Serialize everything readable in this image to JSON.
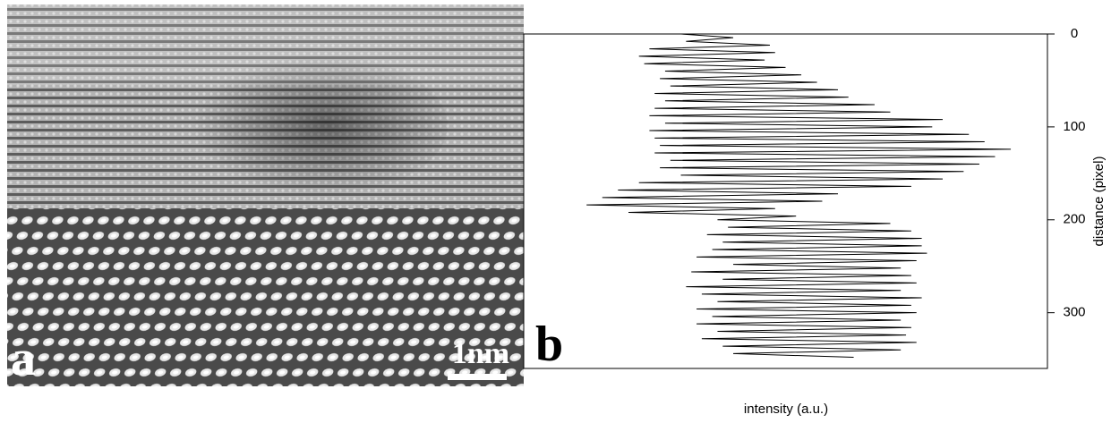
{
  "image_panel": {
    "label": "a",
    "scale_bar": "1nm"
  },
  "chart_data": {
    "type": "line",
    "panel_label": "b",
    "orientation": "vertical",
    "y_axis_side": "right",
    "xlabel": "distance (pixel)",
    "ylabel": "intensity (a.u.)",
    "x": [
      0,
      4,
      8,
      12,
      16,
      20,
      24,
      28,
      32,
      36,
      40,
      44,
      48,
      52,
      56,
      60,
      64,
      68,
      72,
      76,
      80,
      84,
      88,
      92,
      96,
      100,
      104,
      108,
      112,
      116,
      120,
      124,
      128,
      132,
      136,
      140,
      144,
      148,
      152,
      156,
      160,
      164,
      168,
      172,
      176,
      180,
      184,
      188,
      192,
      196,
      200,
      204,
      208,
      212,
      216,
      220,
      224,
      228,
      232,
      236,
      240,
      244,
      248,
      252,
      256,
      260,
      264,
      268,
      272,
      276,
      280,
      284,
      288,
      292,
      296,
      300,
      304,
      308,
      312,
      316,
      320,
      324,
      328,
      332,
      336,
      340,
      344,
      348
    ],
    "xlim": [
      0,
      360
    ],
    "xticks": [
      0,
      100,
      200,
      300
    ],
    "ylim": [
      0,
      100
    ],
    "series": [
      {
        "color": "#000000",
        "values": [
          30,
          40,
          31,
          47,
          24,
          48,
          22,
          46,
          23,
          50,
          27,
          53,
          26,
          56,
          28,
          60,
          25,
          62,
          27,
          67,
          25,
          70,
          24,
          80,
          27,
          78,
          24,
          85,
          25,
          88,
          26,
          93,
          25,
          90,
          28,
          87,
          26,
          84,
          30,
          80,
          22,
          74,
          18,
          60,
          15,
          57,
          12,
          48,
          20,
          52,
          37,
          70,
          39,
          74,
          35,
          76,
          38,
          76,
          36,
          77,
          33,
          75,
          40,
          72,
          32,
          74,
          38,
          75,
          31,
          72,
          34,
          76,
          37,
          74,
          33,
          75,
          36,
          72,
          33,
          74,
          37,
          73,
          34,
          75,
          38,
          72,
          40,
          63
        ]
      }
    ]
  }
}
